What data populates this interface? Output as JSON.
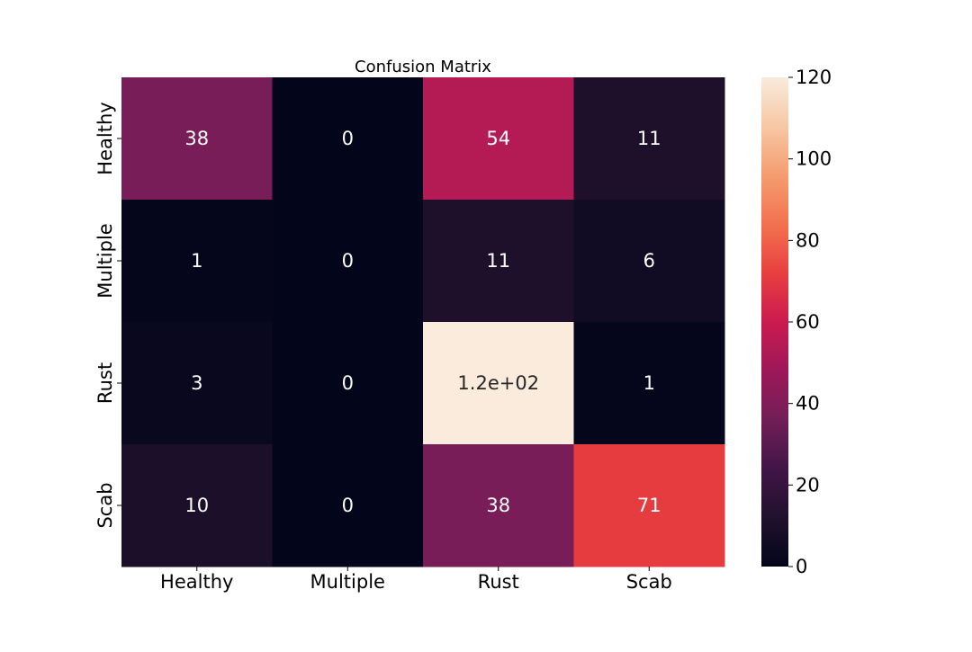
{
  "chart_data": {
    "type": "heatmap",
    "title": "Confusion Matrix",
    "xlabel": "",
    "ylabel": "",
    "x_categories": [
      "Healthy",
      "Multiple",
      "Rust",
      "Scab"
    ],
    "y_categories": [
      "Healthy",
      "Multiple",
      "Rust",
      "Scab"
    ],
    "values": [
      [
        38,
        0,
        54,
        11
      ],
      [
        1,
        0,
        11,
        6
      ],
      [
        3,
        0,
        120,
        1
      ],
      [
        10,
        0,
        38,
        71
      ]
    ],
    "cell_labels": [
      [
        "38",
        "0",
        "54",
        "11"
      ],
      [
        "1",
        "0",
        "11",
        "6"
      ],
      [
        "3",
        "0",
        "1.2e+02",
        "1"
      ],
      [
        "10",
        "0",
        "38",
        "71"
      ]
    ],
    "colorbar": {
      "min": 0,
      "max": 120,
      "ticks": [
        "0",
        "20",
        "40",
        "60",
        "80",
        "100",
        "120"
      ]
    },
    "colormap": "rocket",
    "colors": {
      "cell_text_light": "#ffffff",
      "cell_text_dark": "#262626"
    },
    "grid": false,
    "legend": "colorbar-right"
  }
}
